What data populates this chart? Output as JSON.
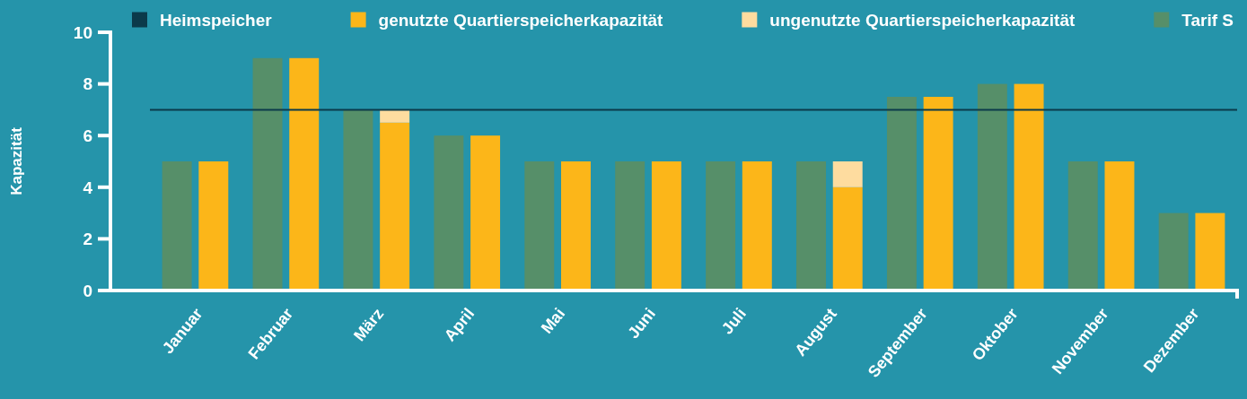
{
  "chart_data": {
    "type": "bar",
    "categories": [
      "Januar",
      "Februar",
      "März",
      "April",
      "Mai",
      "Juni",
      "Juli",
      "August",
      "September",
      "Oktober",
      "November",
      "Dezember"
    ],
    "ylabel": "Kapazität",
    "ylim": [
      0,
      10
    ],
    "yticks": [
      0,
      2,
      4,
      6,
      8,
      10
    ],
    "legend": "top",
    "series": [
      {
        "name": "genutzte Quartierspeicherkapazität",
        "color": "#fcb619",
        "values": [
          5,
          9,
          6.5,
          6,
          5,
          5,
          5,
          4,
          7.5,
          8,
          5,
          3
        ]
      },
      {
        "name": "ungenutzte Quartierspeicherkapazität",
        "color": "#fedc9f",
        "base": [
          null,
          null,
          6.5,
          null,
          null,
          null,
          null,
          4,
          null,
          null,
          null,
          null
        ],
        "values": [
          null,
          null,
          0.5,
          null,
          null,
          null,
          null,
          1,
          null,
          null,
          null,
          null
        ]
      },
      {
        "name": "Tarif S",
        "color": "#568f69",
        "values": [
          5,
          9,
          7,
          6,
          5,
          5,
          5,
          5,
          7.5,
          8,
          5,
          3
        ]
      }
    ],
    "ref_lines": [
      {
        "axis": "y",
        "value": 7,
        "label": "Heimspeicher",
        "color": "#0b3a4a"
      }
    ]
  }
}
